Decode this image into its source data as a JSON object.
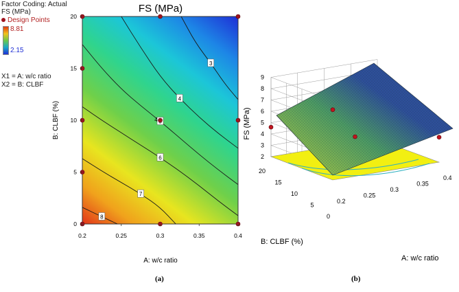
{
  "legend": {
    "factor_coding": "Factor Coding: Actual",
    "response": "FS (MPa)",
    "design_points": "Design Points",
    "max_value": "8.81",
    "min_value": "2.15",
    "x1_def": "X1 = A: w/c ratio",
    "x2_def": "X2 = B: CLBF"
  },
  "chart_data": [
    {
      "type": "contour",
      "panel": "(a)",
      "title": "FS (MPa)",
      "xlabel": "A: w/c ratio",
      "ylabel": "B: CLBF (%)",
      "xlim": [
        0.2,
        0.4
      ],
      "ylim": [
        0,
        20
      ],
      "x_ticks": [
        "0.2",
        "0.25",
        "0.3",
        "0.35",
        "0.4"
      ],
      "y_ticks": [
        "0",
        "5",
        "10",
        "15",
        "20"
      ],
      "color_range": [
        2.15,
        8.81
      ],
      "contour_levels": [
        {
          "label": "3",
          "points": [
            [
              0.327,
              20
            ],
            [
              0.345,
              17.5
            ],
            [
              0.365,
              15.5
            ],
            [
              0.383,
              13.5
            ],
            [
              0.4,
              12
            ]
          ]
        },
        {
          "label": "4",
          "points": [
            [
              0.25,
              20
            ],
            [
              0.275,
              17
            ],
            [
              0.3,
              14.2
            ],
            [
              0.325,
              12.1
            ],
            [
              0.35,
              10.3
            ],
            [
              0.375,
              8.7
            ],
            [
              0.4,
              7.3
            ]
          ]
        },
        {
          "label": "5",
          "points": [
            [
              0.2,
              17.3
            ],
            [
              0.225,
              15
            ],
            [
              0.25,
              13
            ],
            [
              0.275,
              11.4
            ],
            [
              0.3,
              9.9
            ],
            [
              0.325,
              8.3
            ],
            [
              0.35,
              6.7
            ],
            [
              0.375,
              5.2
            ],
            [
              0.4,
              3.8
            ]
          ]
        },
        {
          "label": "6",
          "points": [
            [
              0.2,
              11.3
            ],
            [
              0.225,
              10
            ],
            [
              0.25,
              8.8
            ],
            [
              0.275,
              7.6
            ],
            [
              0.3,
              6.4
            ],
            [
              0.325,
              5.1
            ],
            [
              0.35,
              3.7
            ],
            [
              0.375,
              2.2
            ],
            [
              0.4,
              0.8
            ]
          ]
        },
        {
          "label": "7",
          "points": [
            [
              0.2,
              6.3
            ],
            [
              0.225,
              5.1
            ],
            [
              0.25,
              4
            ],
            [
              0.275,
              2.9
            ],
            [
              0.3,
              1.6
            ],
            [
              0.32,
              0
            ]
          ]
        },
        {
          "label": "8",
          "points": [
            [
              0.2,
              1.6
            ],
            [
              0.225,
              0.7
            ],
            [
              0.245,
              0
            ]
          ]
        }
      ],
      "design_points": [
        {
          "x": 0.2,
          "y": 0
        },
        {
          "x": 0.3,
          "y": 0
        },
        {
          "x": 0.4,
          "y": 0
        },
        {
          "x": 0.2,
          "y": 5
        },
        {
          "x": 0.2,
          "y": 10
        },
        {
          "x": 0.3,
          "y": 10,
          "label": "4"
        },
        {
          "x": 0.4,
          "y": 10
        },
        {
          "x": 0.2,
          "y": 15
        },
        {
          "x": 0.2,
          "y": 20
        },
        {
          "x": 0.3,
          "y": 20
        },
        {
          "x": 0.4,
          "y": 20
        }
      ]
    },
    {
      "type": "surface3d",
      "panel": "(b)",
      "zlabel": "FS (MPa)",
      "xlabel": "A: w/c ratio",
      "ylabel": "B: CLBF (%)",
      "z_ticks": [
        "2",
        "3",
        "4",
        "5",
        "6",
        "7",
        "8",
        "9"
      ],
      "x_ticks": [
        "0.2",
        "0.25",
        "0.3",
        "0.35",
        "0.4"
      ],
      "y_ticks": [
        "0",
        "5",
        "10",
        "15",
        "20"
      ],
      "zlim": [
        2,
        9
      ],
      "surface_corners": [
        {
          "x": 0.2,
          "y": 0,
          "z": 8.3
        },
        {
          "x": 0.4,
          "y": 0,
          "z": 4.9
        },
        {
          "x": 0.2,
          "y": 20,
          "z": 4.7
        },
        {
          "x": 0.4,
          "y": 20,
          "z": 2.2
        }
      ],
      "design_points": [
        {
          "x": 0.3,
          "y": 10,
          "z": 4.0
        },
        {
          "x": 0.2,
          "y": 20,
          "z": 4.6
        },
        {
          "x": 0.4,
          "y": 0,
          "z": 4.2
        },
        {
          "x": 0.2,
          "y": 0,
          "z": 8.2
        }
      ]
    }
  ]
}
